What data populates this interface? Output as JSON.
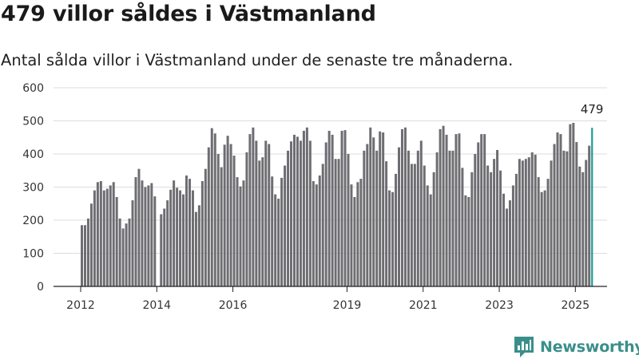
{
  "title": "479 villor såldes i Västmanland",
  "subtitle": "Antal sålda villor i Västmanland under de senaste tre månaderna.",
  "logo_text": "Newsworthy",
  "colors": {
    "bar": "#6e6d72",
    "highlight": "#1a9e96",
    "grid": "#dddddd",
    "axis": "#222222",
    "brand": "#3a8f8a"
  },
  "chart_data": {
    "type": "bar",
    "title": "479 villor såldes i Västmanland",
    "subtitle": "Antal sålda villor i Västmanland under de senaste tre månaderna.",
    "xlabel": "",
    "ylabel": "",
    "ylim": [
      0,
      600
    ],
    "yticks": [
      0,
      100,
      200,
      300,
      400,
      500,
      600
    ],
    "grid": true,
    "xticks": [
      {
        "label": "2012",
        "index": 0
      },
      {
        "label": "2014",
        "index": 24
      },
      {
        "label": "2016",
        "index": 48
      },
      {
        "label": "2019",
        "index": 84
      },
      {
        "label": "2021",
        "index": 108
      },
      {
        "label": "2023",
        "index": 132
      },
      {
        "label": "2025",
        "index": 156
      }
    ],
    "start": "2012-01",
    "frequency": "monthly, 3-month rolling",
    "values": [
      185,
      185,
      205,
      250,
      290,
      315,
      318,
      290,
      295,
      305,
      315,
      270,
      205,
      175,
      190,
      205,
      260,
      330,
      355,
      320,
      300,
      305,
      312,
      272,
      0,
      218,
      235,
      260,
      292,
      320,
      298,
      290,
      278,
      335,
      325,
      290,
      225,
      245,
      318,
      355,
      420,
      478,
      462,
      400,
      360,
      428,
      455,
      430,
      395,
      330,
      302,
      320,
      405,
      460,
      480,
      440,
      380,
      390,
      440,
      430,
      332,
      278,
      265,
      328,
      365,
      410,
      438,
      458,
      452,
      440,
      470,
      480,
      440,
      318,
      308,
      335,
      370,
      435,
      470,
      458,
      385,
      385,
      470,
      472,
      400,
      308,
      270,
      315,
      325,
      410,
      430,
      480,
      450,
      410,
      468,
      465,
      378,
      290,
      285,
      340,
      420,
      475,
      480,
      410,
      370,
      370,
      410,
      440,
      365,
      305,
      278,
      345,
      405,
      475,
      485,
      458,
      410,
      410,
      460,
      462,
      358,
      275,
      270,
      345,
      400,
      435,
      460,
      460,
      365,
      345,
      385,
      412,
      350,
      280,
      235,
      260,
      305,
      340,
      385,
      380,
      385,
      390,
      405,
      398,
      330,
      285,
      290,
      325,
      380,
      430,
      465,
      460,
      410,
      408,
      490,
      494,
      436,
      362,
      345,
      382,
      425,
      479
    ],
    "last_value_label": "479"
  }
}
